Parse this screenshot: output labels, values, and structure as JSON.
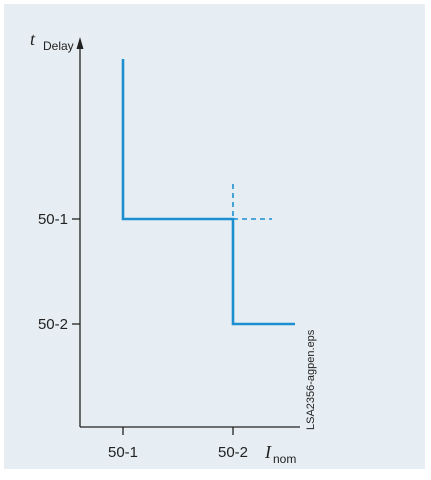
{
  "colors": {
    "background": "#e7eef3",
    "axis": "#222222",
    "curve": "#1b8fcf"
  },
  "y_axis": {
    "symbol": "t",
    "subscript": "Delay"
  },
  "x_axis": {
    "symbol": "I",
    "subscript": "nom"
  },
  "x_ticks": [
    "50-1",
    "50-2"
  ],
  "y_ticks": [
    "50-1",
    "50-2"
  ],
  "file_label": "LSA2356-agpen.eps"
}
